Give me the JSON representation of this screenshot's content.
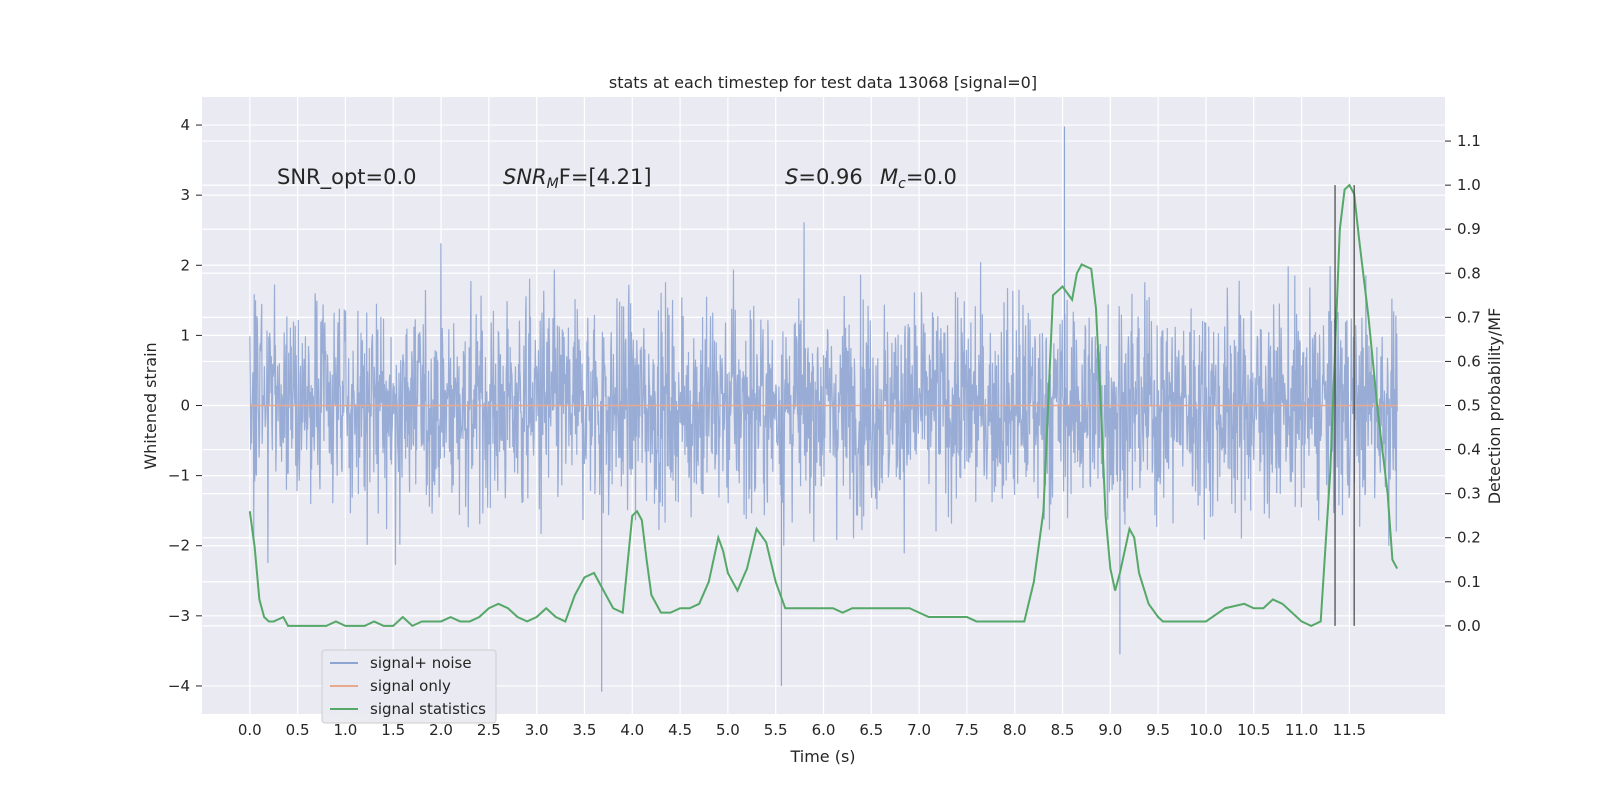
{
  "chart_data": {
    "type": "line",
    "title": "stats at each timestep for test data 13068 [signal=0]",
    "xlabel": "Time (s)",
    "ylabel": "Whitened strain",
    "y2label": "Detection probability/MF",
    "xlim": [
      -0.5,
      12.5
    ],
    "ylim": [
      -4.4,
      4.4
    ],
    "y2lim": [
      -0.2,
      1.2
    ],
    "xticks": [
      "0.0",
      "0.5",
      "1.0",
      "1.5",
      "2.0",
      "2.5",
      "3.0",
      "3.5",
      "4.0",
      "4.5",
      "5.0",
      "5.5",
      "6.0",
      "6.5",
      "7.0",
      "7.5",
      "8.0",
      "8.5",
      "9.0",
      "9.5",
      "10.0",
      "10.5",
      "11.0",
      "11.5"
    ],
    "yticks": [
      "4",
      "3",
      "2",
      "1",
      "0",
      "−1",
      "−2",
      "−3",
      "−4"
    ],
    "y2ticks": [
      "1.1",
      "1.0",
      "0.9",
      "0.8",
      "0.7",
      "0.6",
      "0.5",
      "0.4",
      "0.3",
      "0.2",
      "0.1",
      "0.0"
    ],
    "grid": true,
    "legend_position": "lower-left",
    "annotations": {
      "snr_opt": "SNR_opt=0.0",
      "snr_mf_name": "SNR",
      "snr_mf_sub": "M",
      "snr_mf_rest": "F=[4.21]",
      "s_name": "S",
      "s_value": "=0.96",
      "mc_name": "M",
      "mc_sub": "c",
      "mc_value": "=0.0"
    },
    "series": [
      {
        "name": "signal+ noise",
        "color": "#8fa5d1",
        "axis": "left",
        "x_range": [
          0.0,
          12.0
        ],
        "amplitude_typical": [
          -2.6,
          2.6
        ],
        "extremes": [
          3.98,
          -4.08
        ]
      },
      {
        "name": "signal only",
        "color": "#e8a98f",
        "axis": "left",
        "x": [
          0.0,
          12.0
        ],
        "y": [
          0.0,
          0.0
        ]
      },
      {
        "name": "signal statistics",
        "color": "#55a868",
        "axis": "right",
        "x": [
          0.0,
          0.05,
          0.1,
          0.15,
          0.2,
          0.25,
          0.3,
          0.35,
          0.4,
          0.5,
          0.6,
          0.7,
          0.8,
          0.9,
          1.0,
          1.1,
          1.2,
          1.3,
          1.4,
          1.5,
          1.6,
          1.7,
          1.8,
          1.9,
          2.0,
          2.1,
          2.2,
          2.3,
          2.4,
          2.5,
          2.6,
          2.7,
          2.8,
          2.9,
          3.0,
          3.1,
          3.2,
          3.3,
          3.4,
          3.5,
          3.6,
          3.7,
          3.8,
          3.9,
          4.0,
          4.05,
          4.1,
          4.15,
          4.2,
          4.3,
          4.4,
          4.5,
          4.6,
          4.7,
          4.8,
          4.9,
          4.95,
          5.0,
          5.05,
          5.1,
          5.2,
          5.3,
          5.4,
          5.5,
          5.6,
          5.7,
          5.8,
          5.9,
          6.0,
          6.1,
          6.2,
          6.3,
          6.4,
          6.5,
          6.6,
          6.7,
          6.8,
          6.9,
          7.0,
          7.1,
          7.2,
          7.3,
          7.4,
          7.5,
          7.6,
          7.7,
          7.8,
          7.9,
          8.0,
          8.1,
          8.2,
          8.3,
          8.4,
          8.5,
          8.6,
          8.65,
          8.7,
          8.8,
          8.85,
          8.9,
          8.95,
          9.0,
          9.05,
          9.1,
          9.2,
          9.25,
          9.3,
          9.4,
          9.5,
          9.55,
          9.6,
          9.7,
          9.8,
          9.9,
          10.0,
          10.2,
          10.4,
          10.5,
          10.6,
          10.7,
          10.8,
          10.9,
          11.0,
          11.1,
          11.2,
          11.3,
          11.4,
          11.45,
          11.5,
          11.55,
          11.6,
          11.7,
          11.8,
          11.9,
          11.95,
          12.0
        ],
        "y": [
          0.26,
          0.18,
          0.06,
          0.02,
          0.01,
          0.01,
          0.015,
          0.02,
          0.0,
          0.0,
          0.0,
          0.0,
          0.0,
          0.01,
          0.0,
          0.0,
          0.0,
          0.01,
          0.0,
          0.0,
          0.02,
          0.0,
          0.01,
          0.01,
          0.01,
          0.02,
          0.01,
          0.01,
          0.02,
          0.04,
          0.05,
          0.04,
          0.02,
          0.01,
          0.02,
          0.04,
          0.02,
          0.01,
          0.07,
          0.11,
          0.12,
          0.08,
          0.04,
          0.03,
          0.25,
          0.26,
          0.24,
          0.15,
          0.07,
          0.03,
          0.03,
          0.04,
          0.04,
          0.05,
          0.1,
          0.2,
          0.17,
          0.12,
          0.1,
          0.08,
          0.13,
          0.22,
          0.19,
          0.1,
          0.04,
          0.04,
          0.04,
          0.04,
          0.04,
          0.04,
          0.03,
          0.04,
          0.04,
          0.04,
          0.04,
          0.04,
          0.04,
          0.04,
          0.03,
          0.02,
          0.02,
          0.02,
          0.02,
          0.02,
          0.01,
          0.01,
          0.01,
          0.01,
          0.01,
          0.01,
          0.1,
          0.26,
          0.75,
          0.77,
          0.74,
          0.8,
          0.82,
          0.81,
          0.72,
          0.5,
          0.25,
          0.13,
          0.08,
          0.12,
          0.22,
          0.2,
          0.12,
          0.05,
          0.02,
          0.01,
          0.01,
          0.01,
          0.01,
          0.01,
          0.01,
          0.04,
          0.05,
          0.04,
          0.04,
          0.06,
          0.05,
          0.03,
          0.01,
          0.0,
          0.01,
          0.35,
          0.9,
          0.99,
          1.0,
          0.98,
          0.88,
          0.7,
          0.48,
          0.3,
          0.15,
          0.13
        ]
      }
    ],
    "vertical_lines": [
      11.35,
      11.55
    ]
  }
}
